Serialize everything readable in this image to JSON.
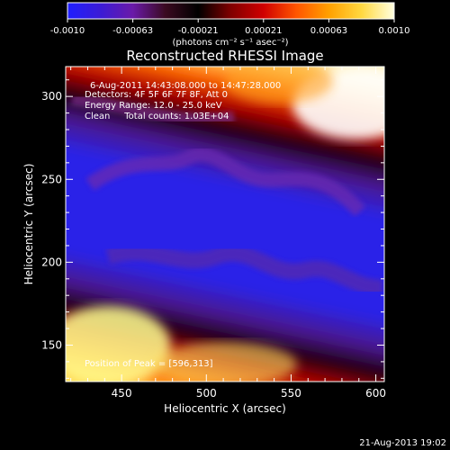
{
  "colorbar": {
    "ticks": [
      "-0.0010",
      "-0.00063",
      "-0.00021",
      "0.00021",
      "0.00063",
      "0.0010"
    ],
    "unit_label": "(photons cm⁻² s⁻¹ asec⁻²)",
    "stops": [
      "#1f1fff",
      "#3b1bd6",
      "#6a1aa8",
      "#3a0a20",
      "#000000",
      "#800000",
      "#d00000",
      "#ff5500",
      "#ffa000",
      "#ffd840",
      "#ffffe0"
    ]
  },
  "annotations": {
    "time_range": "6-Aug-2011 14:43:08.000 to 14:47:28.000",
    "detectors": "Detectors: 4F 5F 6F 7F 8F, Att 0",
    "energy": "Energy Range: 12.0 - 25.0 keV",
    "clean": "Clean     Total counts: 1.03E+04",
    "peak": "Position of Peak = [596,313]"
  },
  "footer": {
    "timestamp": "21-Aug-2013 19:02"
  },
  "chart_data": {
    "type": "heatmap",
    "title": "Reconstructed RHESSI Image",
    "xlabel": "Heliocentric X (arcsec)",
    "ylabel": "Heliocentric Y (arcsec)",
    "xlim": [
      417,
      605
    ],
    "ylim": [
      128,
      318
    ],
    "xticks": [
      450,
      500,
      550,
      600
    ],
    "yticks": [
      150,
      200,
      250,
      300
    ],
    "colorbar_range": [
      -0.001,
      0.001
    ],
    "peak": [
      596,
      313
    ]
  }
}
